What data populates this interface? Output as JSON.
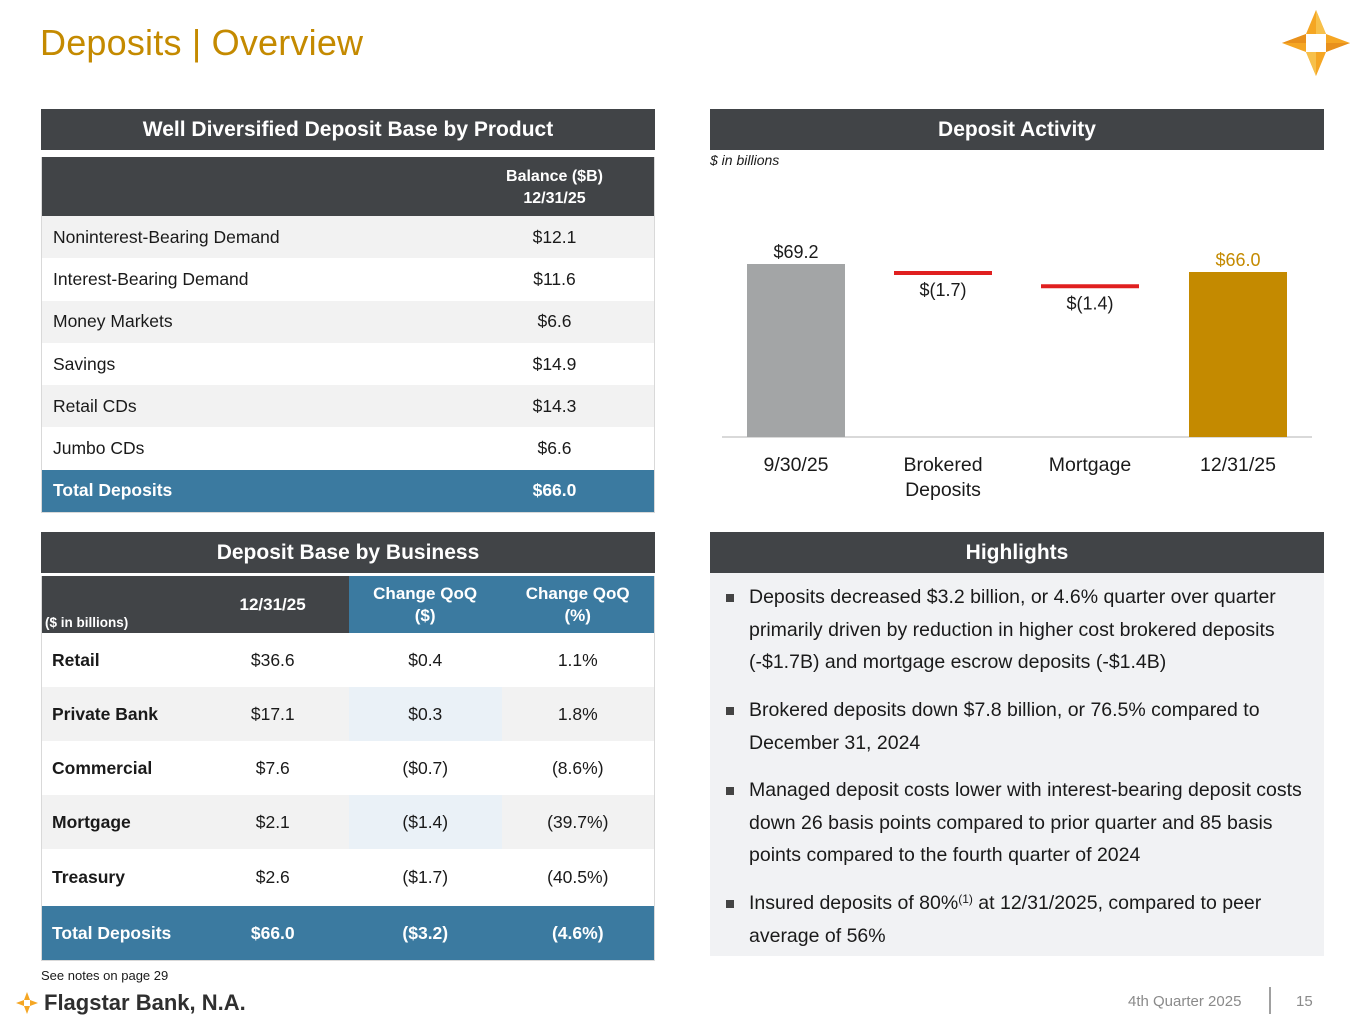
{
  "title": "Deposits | Overview",
  "product_panel": {
    "heading": "Well Diversified Deposit Base by Product",
    "col_header_line1": "Balance ($B)",
    "col_header_line2": "12/31/25",
    "rows": [
      {
        "name": "Noninterest-Bearing Demand",
        "value": "$12.1"
      },
      {
        "name": "Interest-Bearing Demand",
        "value": "$11.6"
      },
      {
        "name": "Money Markets",
        "value": "$6.6"
      },
      {
        "name": "Savings",
        "value": "$14.9"
      },
      {
        "name": "Retail CDs",
        "value": "$14.3"
      },
      {
        "name": "Jumbo CDs",
        "value": "$6.6"
      }
    ],
    "total": {
      "name": "Total Deposits",
      "value": "$66.0"
    }
  },
  "business_panel": {
    "heading": "Deposit Base by Business",
    "units": "($ in billions)",
    "col_date": "12/31/25",
    "col_change_usd": "Change QoQ ($)",
    "col_change_pct": "Change QoQ (%)",
    "rows": [
      {
        "name": "Retail",
        "balance": "$36.6",
        "chg_usd": "$0.4",
        "chg_pct": "1.1%"
      },
      {
        "name": "Private Bank",
        "balance": "$17.1",
        "chg_usd": "$0.3",
        "chg_pct": "1.8%"
      },
      {
        "name": "Commercial",
        "balance": "$7.6",
        "chg_usd": "($0.7)",
        "chg_pct": "(8.6%)"
      },
      {
        "name": "Mortgage",
        "balance": "$2.1",
        "chg_usd": "($1.4)",
        "chg_pct": "(39.7%)"
      },
      {
        "name": "Treasury",
        "balance": "$2.6",
        "chg_usd": "($1.7)",
        "chg_pct": "(40.5%)"
      }
    ],
    "total": {
      "name": "Total Deposits",
      "balance": "$66.0",
      "chg_usd": "($3.2)",
      "chg_pct": "(4.6%)"
    }
  },
  "activity_panel": {
    "heading": "Deposit Activity",
    "units_note": "$ in billions"
  },
  "chart_data": {
    "type": "bar",
    "subtype": "waterfall",
    "title": "Deposit Activity",
    "units": "$ in billions",
    "categories": [
      "9/30/25",
      "Brokered Deposits",
      "Mortgage",
      "12/31/25"
    ],
    "category_lines": [
      [
        "9/30/25"
      ],
      [
        "Brokered",
        "Deposits"
      ],
      [
        "Mortgage"
      ],
      [
        "12/31/25"
      ]
    ],
    "values": [
      69.2,
      -1.7,
      -1.4,
      66.0
    ],
    "labels": [
      "$69.2",
      "$(1.7)",
      "$(1.4)",
      "$66.0"
    ],
    "kinds": [
      "total",
      "delta",
      "delta",
      "total"
    ],
    "ylim": [
      0,
      75
    ],
    "colors": {
      "start": "#a3a5a6",
      "delta": "#e02020",
      "end": "#c48a00",
      "end_label": "#c48a00"
    }
  },
  "highlights_panel": {
    "heading": "Highlights",
    "items": [
      {
        "text": "Deposits decreased $3.2 billion, or 4.6% quarter over quarter primarily driven by reduction in higher cost brokered deposits (-$1.7B) and mortgage escrow deposits (-$1.4B)"
      },
      {
        "text": "Brokered deposits down $7.8 billion, or 76.5% compared to December 31, 2024"
      },
      {
        "text": "Managed deposit costs lower with interest-bearing deposit costs down 26 basis points compared to prior quarter and 85 basis points compared to the fourth quarter of 2024"
      },
      {
        "text_before": "Insured deposits of 80%",
        "sup": "(1)",
        "text_after": " at 12/31/2025, compared to peer average of 56%"
      }
    ]
  },
  "footer": {
    "note": "See notes on page 29",
    "brand": "Flagstar Bank, N.A.",
    "period": "4th Quarter 2025",
    "page": "15"
  },
  "colors": {
    "gold": "#c48a00",
    "dark_header": "#414447",
    "blue": "#3b7aa0",
    "orange": "#f5a623"
  }
}
